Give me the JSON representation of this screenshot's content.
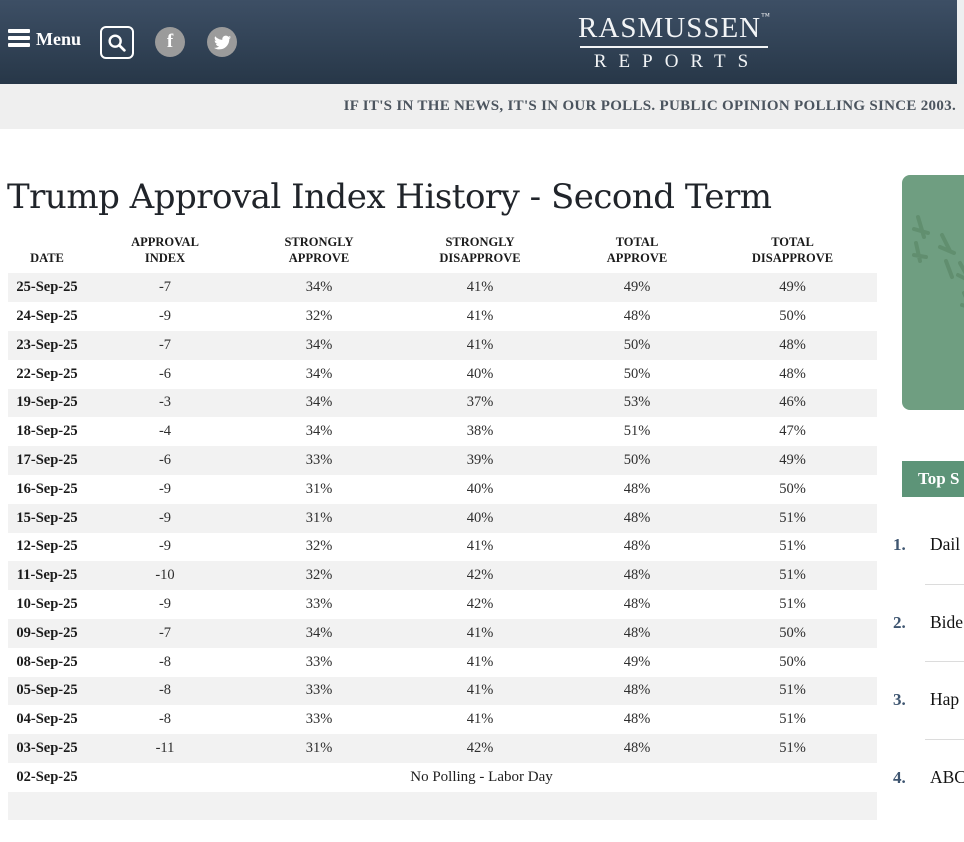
{
  "header": {
    "menu_label": "Menu",
    "logo_line1": "RASMUSSEN",
    "logo_tm": "™",
    "logo_line2": "REPORTS",
    "facebook_glyph": "f"
  },
  "tagline": "IF IT'S IN THE NEWS, IT'S IN OUR POLLS. PUBLIC OPINION POLLING SINCE 2003.",
  "main": {
    "title": "Trump Approval Index History - Second Term"
  },
  "table": {
    "headers": [
      "DATE",
      "APPROVAL\nINDEX",
      "STRONGLY\nAPPROVE",
      "STRONGLY\nDISAPPROVE",
      "TOTAL\nAPPROVE",
      "TOTAL\nDISAPPROVE"
    ],
    "rows": [
      {
        "date": "25-Sep-25",
        "approval_index": "-7",
        "strongly_approve": "34%",
        "strongly_disapprove": "41%",
        "total_approve": "49%",
        "total_disapprove": "49%"
      },
      {
        "date": "24-Sep-25",
        "approval_index": "-9",
        "strongly_approve": "32%",
        "strongly_disapprove": "41%",
        "total_approve": "48%",
        "total_disapprove": "50%"
      },
      {
        "date": "23-Sep-25",
        "approval_index": "-7",
        "strongly_approve": "34%",
        "strongly_disapprove": "41%",
        "total_approve": "50%",
        "total_disapprove": "48%"
      },
      {
        "date": "22-Sep-25",
        "approval_index": "-6",
        "strongly_approve": "34%",
        "strongly_disapprove": "40%",
        "total_approve": "50%",
        "total_disapprove": "48%"
      },
      {
        "date": "19-Sep-25",
        "approval_index": "-3",
        "strongly_approve": "34%",
        "strongly_disapprove": "37%",
        "total_approve": "53%",
        "total_disapprove": "46%"
      },
      {
        "date": "18-Sep-25",
        "approval_index": "-4",
        "strongly_approve": "34%",
        "strongly_disapprove": "38%",
        "total_approve": "51%",
        "total_disapprove": "47%"
      },
      {
        "date": "17-Sep-25",
        "approval_index": "-6",
        "strongly_approve": "33%",
        "strongly_disapprove": "39%",
        "total_approve": "50%",
        "total_disapprove": "49%"
      },
      {
        "date": "16-Sep-25",
        "approval_index": "-9",
        "strongly_approve": "31%",
        "strongly_disapprove": "40%",
        "total_approve": "48%",
        "total_disapprove": "50%"
      },
      {
        "date": "15-Sep-25",
        "approval_index": "-9",
        "strongly_approve": "31%",
        "strongly_disapprove": "40%",
        "total_approve": "48%",
        "total_disapprove": "51%"
      },
      {
        "date": "12-Sep-25",
        "approval_index": "-9",
        "strongly_approve": "32%",
        "strongly_disapprove": "41%",
        "total_approve": "48%",
        "total_disapprove": "51%"
      },
      {
        "date": "11-Sep-25",
        "approval_index": "-10",
        "strongly_approve": "32%",
        "strongly_disapprove": "42%",
        "total_approve": "48%",
        "total_disapprove": "51%"
      },
      {
        "date": "10-Sep-25",
        "approval_index": "-9",
        "strongly_approve": "33%",
        "strongly_disapprove": "42%",
        "total_approve": "48%",
        "total_disapprove": "51%"
      },
      {
        "date": "09-Sep-25",
        "approval_index": "-7",
        "strongly_approve": "34%",
        "strongly_disapprove": "41%",
        "total_approve": "48%",
        "total_disapprove": "50%"
      },
      {
        "date": "08-Sep-25",
        "approval_index": "-8",
        "strongly_approve": "33%",
        "strongly_disapprove": "41%",
        "total_approve": "49%",
        "total_disapprove": "50%"
      },
      {
        "date": "05-Sep-25",
        "approval_index": "-8",
        "strongly_approve": "33%",
        "strongly_disapprove": "41%",
        "total_approve": "48%",
        "total_disapprove": "51%"
      },
      {
        "date": "04-Sep-25",
        "approval_index": "-8",
        "strongly_approve": "33%",
        "strongly_disapprove": "41%",
        "total_approve": "48%",
        "total_disapprove": "51%"
      },
      {
        "date": "03-Sep-25",
        "approval_index": "-11",
        "strongly_approve": "31%",
        "strongly_disapprove": "42%",
        "total_approve": "48%",
        "total_disapprove": "51%"
      },
      {
        "date": "02-Sep-25",
        "note": "No Polling - Labor Day"
      }
    ]
  },
  "sidebar": {
    "top_stories_label": "Top S",
    "items": [
      {
        "number": "1.",
        "text": "Dail"
      },
      {
        "number": "2.",
        "text": "Bide"
      },
      {
        "number": "3.",
        "text": "Hap"
      },
      {
        "number": "4.",
        "text": "ABC"
      }
    ]
  },
  "colors": {
    "header_gradient_top": "#3d4f65",
    "header_gradient_bottom": "#273748",
    "tagline_bar_bg": "#efefef",
    "tagline_text": "#4b545e",
    "row_stripe": "#f2f2f2",
    "accent_green": "#5d9478",
    "sidebar_image_green": "#6f9e81",
    "list_number_blue": "#3e5570",
    "social_icon_gray": "#9b9b9b"
  }
}
